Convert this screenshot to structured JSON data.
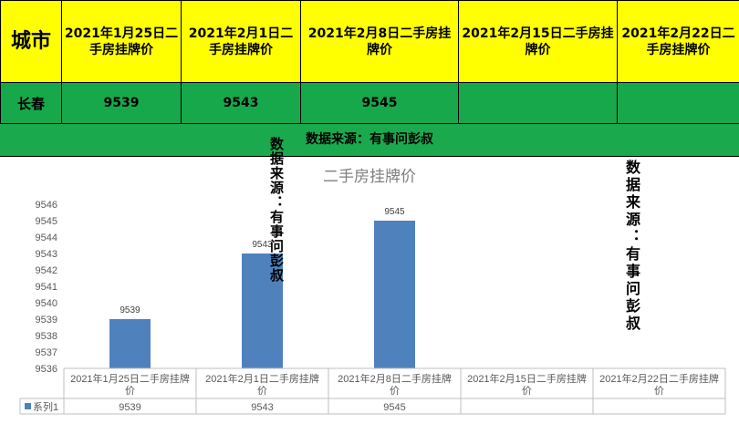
{
  "table": {
    "city_header": "城市",
    "columns": [
      "2021年1月25日二手房挂牌价",
      "2021年2月1日二手房挂牌价",
      "2021年2月8日二手房挂牌价",
      "2021年2月15日二手房挂牌价",
      "2021年2月22日二手房挂牌价"
    ],
    "row": {
      "city": "长春",
      "values": [
        "9539",
        "9543",
        "9545",
        "",
        ""
      ]
    }
  },
  "source_note": "数据来源：有事问彭叔",
  "vertical_note_1": "数据来源：有事问彭叔",
  "vertical_note_2": "数据来源：有事问彭叔",
  "chart_data": {
    "type": "bar",
    "title": "二手房挂牌价",
    "categories": [
      "2021年1月25日二手房挂牌价",
      "2021年2月1日二手房挂牌价",
      "2021年2月8日二手房挂牌价",
      "2021年2月15日二手房挂牌价",
      "2021年2月22日二手房挂牌价"
    ],
    "series": [
      {
        "name": "系列1",
        "values": [
          9539,
          9543,
          9545,
          null,
          null
        ]
      }
    ],
    "ylim": [
      9536,
      9546
    ],
    "yticks": [
      9536,
      9537,
      9538,
      9539,
      9540,
      9541,
      9542,
      9543,
      9544,
      9545,
      9546
    ],
    "data_labels": true,
    "grid": false,
    "legend": "data-table",
    "bar_color": "#4f81bd"
  }
}
